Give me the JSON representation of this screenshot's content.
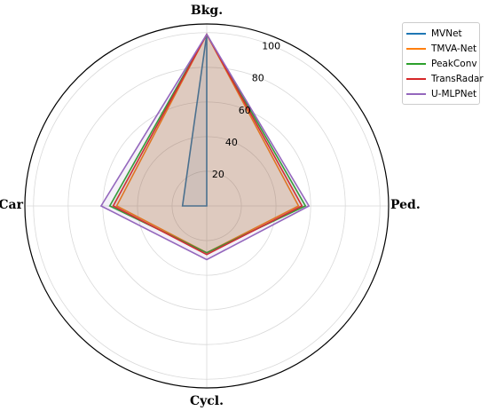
{
  "chart_data": {
    "type": "radar",
    "title": "",
    "axes": [
      "Bkg.",
      "Ped.",
      "Cycl.",
      "Car"
    ],
    "radial_ticks": [
      20,
      40,
      60,
      80,
      100
    ],
    "rlim": [
      0,
      105
    ],
    "grid": true,
    "legend_position": "top-right",
    "series": [
      {
        "name": "MVNet",
        "color": "#1f77b4",
        "values": [
          99,
          0,
          0,
          14
        ]
      },
      {
        "name": "TMVA-Net",
        "color": "#ff7f0e",
        "values": [
          99,
          53,
          27,
          52
        ]
      },
      {
        "name": "PeakConv",
        "color": "#2ca02c",
        "values": [
          99,
          57,
          27,
          56
        ]
      },
      {
        "name": "TransRadar",
        "color": "#d62728",
        "values": [
          99,
          55,
          28,
          54
        ]
      },
      {
        "name": "U-MLPNet",
        "color": "#9467bd",
        "values": [
          99,
          59,
          31,
          61
        ]
      }
    ]
  }
}
